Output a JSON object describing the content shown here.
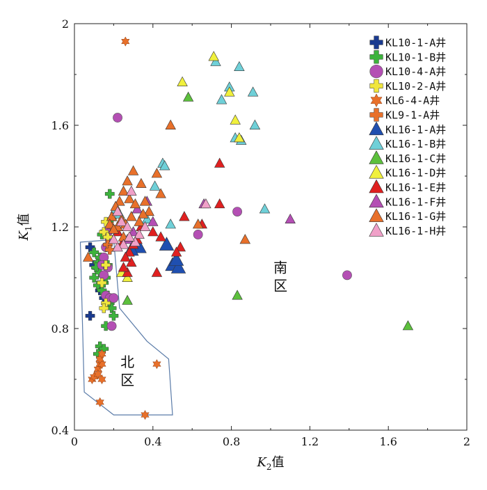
{
  "chart_data": {
    "type": "scatter",
    "title": "",
    "xlabel": "K₂值",
    "ylabel": "K₁值",
    "xlim": [
      0,
      2
    ],
    "ylim": [
      0.4,
      2
    ],
    "xticks": [
      "0",
      "0.4",
      "0.8",
      "1.2",
      "1.6",
      "2"
    ],
    "yticks": [
      "0.4",
      "0.8",
      "1.2",
      "1.6",
      "2"
    ],
    "xtick_values": [
      0,
      0.4,
      0.8,
      1.2,
      1.6,
      2
    ],
    "ytick_values": [
      0.4,
      0.8,
      1.2,
      1.6,
      2
    ],
    "grid": false,
    "legend_position": "top-right",
    "annotations": [
      {
        "text": "南\n区",
        "x": 1.05,
        "y": 1.02
      },
      {
        "text": "北\n区",
        "x": 0.27,
        "y": 0.65
      }
    ],
    "regions": [
      {
        "name": "北区",
        "boundary": [
          [
            0.03,
            1.14
          ],
          [
            0.2,
            1.15
          ],
          [
            0.23,
            0.88
          ],
          [
            0.37,
            0.75
          ],
          [
            0.48,
            0.68
          ],
          [
            0.5,
            0.46
          ],
          [
            0.2,
            0.46
          ],
          [
            0.05,
            0.55
          ]
        ],
        "color": "#5a7ba8"
      }
    ],
    "series": [
      {
        "name": "KL10-1-A井",
        "marker": "cross",
        "color": "#1a3a8f",
        "points": [
          [
            0.08,
            1.12
          ],
          [
            0.08,
            0.85
          ],
          [
            0.15,
            0.92
          ],
          [
            0.13,
            0.95
          ],
          [
            0.1,
            1.05
          ]
        ]
      },
      {
        "name": "KL10-1-B井",
        "marker": "cross",
        "color": "#3cb33c",
        "points": [
          [
            0.18,
            1.33
          ],
          [
            0.19,
            1.23
          ],
          [
            0.16,
            1.18
          ],
          [
            0.14,
            1.17
          ],
          [
            0.1,
            1.1
          ],
          [
            0.12,
            1.06
          ],
          [
            0.11,
            1.04
          ],
          [
            0.13,
            1.02
          ],
          [
            0.1,
            1.0
          ],
          [
            0.15,
            0.98
          ],
          [
            0.12,
            0.97
          ],
          [
            0.14,
            0.95
          ],
          [
            0.17,
            0.93
          ],
          [
            0.18,
            0.9
          ],
          [
            0.19,
            0.88
          ],
          [
            0.2,
            0.85
          ],
          [
            0.16,
            0.81
          ],
          [
            0.13,
            0.73
          ],
          [
            0.15,
            0.72
          ],
          [
            0.12,
            0.7
          ],
          [
            0.16,
            1.0
          ],
          [
            0.17,
            1.05
          ],
          [
            0.13,
            1.08
          ]
        ]
      },
      {
        "name": "KL10-4-A井",
        "marker": "circle",
        "color": "#b44fb4",
        "points": [
          [
            0.22,
            1.63
          ],
          [
            0.17,
            1.18
          ],
          [
            0.18,
            1.15
          ],
          [
            0.16,
            1.12
          ],
          [
            0.15,
            1.08
          ],
          [
            0.14,
            1.05
          ],
          [
            0.17,
            1.04
          ],
          [
            0.15,
            1.01
          ],
          [
            0.16,
            0.93
          ],
          [
            0.18,
            0.92
          ],
          [
            0.2,
            0.92
          ],
          [
            0.19,
            0.81
          ],
          [
            0.63,
            1.17
          ],
          [
            0.83,
            1.26
          ],
          [
            1.39,
            1.01
          ]
        ]
      },
      {
        "name": "KL10-2-A井",
        "marker": "cross",
        "color": "#f0e63c",
        "points": [
          [
            0.16,
            1.22
          ],
          [
            0.15,
            1.18
          ],
          [
            0.17,
            1.16
          ],
          [
            0.16,
            1.05
          ],
          [
            0.14,
            0.98
          ],
          [
            0.16,
            0.9
          ],
          [
            0.15,
            0.88
          ]
        ]
      },
      {
        "name": "KL6-4-A井",
        "marker": "star",
        "color": "#e8702a",
        "points": [
          [
            0.26,
            1.93
          ],
          [
            0.09,
            0.6
          ],
          [
            0.1,
            0.61
          ],
          [
            0.12,
            0.64
          ],
          [
            0.13,
            0.66
          ],
          [
            0.14,
            0.66
          ],
          [
            0.13,
            0.68
          ],
          [
            0.14,
            0.7
          ],
          [
            0.12,
            0.62
          ],
          [
            0.14,
            0.6
          ],
          [
            0.42,
            0.66
          ],
          [
            0.13,
            0.51
          ],
          [
            0.36,
            0.46
          ]
        ]
      },
      {
        "name": "KL9-1-A井",
        "marker": "cross",
        "color": "#e8702a",
        "points": [
          [
            0.19,
            1.2
          ],
          [
            0.17,
            1.13
          ],
          [
            0.18,
            1.11
          ]
        ]
      },
      {
        "name": "KL16-1-A井",
        "marker": "triangle",
        "color": "#1f4fb0",
        "points": [
          [
            0.31,
            1.13
          ],
          [
            0.33,
            1.12
          ],
          [
            0.47,
            1.13
          ],
          [
            0.5,
            1.05
          ],
          [
            0.53,
            1.04
          ],
          [
            0.52,
            1.07
          ],
          [
            0.29,
            1.11
          ]
        ]
      },
      {
        "name": "KL16-1-B井",
        "marker": "triangle",
        "color": "#6fd0d8",
        "points": [
          [
            0.72,
            1.85
          ],
          [
            0.84,
            1.83
          ],
          [
            0.79,
            1.75
          ],
          [
            0.91,
            1.73
          ],
          [
            0.75,
            1.7
          ],
          [
            0.82,
            1.55
          ],
          [
            0.92,
            1.6
          ],
          [
            0.85,
            1.54
          ],
          [
            0.45,
            1.45
          ],
          [
            0.46,
            1.44
          ],
          [
            0.41,
            1.36
          ],
          [
            0.97,
            1.27
          ],
          [
            0.21,
            1.27
          ],
          [
            0.23,
            1.25
          ],
          [
            0.49,
            1.21
          ],
          [
            0.37,
            1.23
          ]
        ]
      },
      {
        "name": "KL16-1-C井",
        "marker": "triangle",
        "color": "#5cc03c",
        "points": [
          [
            0.58,
            1.71
          ],
          [
            0.83,
            0.93
          ],
          [
            1.7,
            0.81
          ],
          [
            0.27,
            0.91
          ]
        ]
      },
      {
        "name": "KL16-1-D井",
        "marker": "triangle",
        "color": "#f0f03c",
        "points": [
          [
            0.71,
            1.87
          ],
          [
            0.55,
            1.77
          ],
          [
            0.79,
            1.73
          ],
          [
            0.82,
            1.62
          ],
          [
            0.84,
            1.55
          ],
          [
            0.27,
            1.0
          ],
          [
            0.24,
            1.02
          ]
        ]
      },
      {
        "name": "KL16-1-E井",
        "marker": "triangle",
        "color": "#e02020",
        "points": [
          [
            0.74,
            1.45
          ],
          [
            0.74,
            1.29
          ],
          [
            0.65,
            1.21
          ],
          [
            0.56,
            1.24
          ],
          [
            0.54,
            1.12
          ],
          [
            0.52,
            1.1
          ],
          [
            0.42,
            1.02
          ],
          [
            0.27,
            1.02
          ],
          [
            0.28,
            1.1
          ],
          [
            0.29,
            1.06
          ],
          [
            0.3,
            1.13
          ],
          [
            0.32,
            1.15
          ],
          [
            0.26,
            1.08
          ],
          [
            0.34,
            1.2
          ],
          [
            0.4,
            1.18
          ],
          [
            0.44,
            1.16
          ],
          [
            0.25,
            1.04
          ],
          [
            0.22,
            1.18
          ],
          [
            0.24,
            1.13
          ]
        ]
      },
      {
        "name": "KL16-1-F井",
        "marker": "triangle",
        "color": "#b44fb4",
        "points": [
          [
            1.1,
            1.23
          ],
          [
            0.66,
            1.29
          ],
          [
            0.4,
            1.22
          ],
          [
            0.32,
            1.27
          ],
          [
            0.37,
            1.3
          ],
          [
            0.3,
            1.18
          ],
          [
            0.27,
            1.15
          ]
        ]
      },
      {
        "name": "KL16-1-G井",
        "marker": "triangle",
        "color": "#e8702a",
        "points": [
          [
            0.49,
            1.6
          ],
          [
            0.3,
            1.42
          ],
          [
            0.27,
            1.38
          ],
          [
            0.34,
            1.37
          ],
          [
            0.42,
            1.41
          ],
          [
            0.44,
            1.33
          ],
          [
            0.36,
            1.3
          ],
          [
            0.38,
            1.26
          ],
          [
            0.35,
            1.25
          ],
          [
            0.25,
            1.34
          ],
          [
            0.23,
            1.3
          ],
          [
            0.28,
            1.31
          ],
          [
            0.31,
            1.29
          ],
          [
            0.21,
            1.28
          ],
          [
            0.19,
            1.24
          ],
          [
            0.18,
            1.21
          ],
          [
            0.24,
            1.23
          ],
          [
            0.22,
            1.2
          ],
          [
            0.2,
            1.19
          ],
          [
            0.26,
            1.21
          ],
          [
            0.63,
            1.21
          ],
          [
            0.87,
            1.15
          ],
          [
            0.29,
            1.24
          ],
          [
            0.33,
            1.22
          ],
          [
            0.07,
            1.08
          ],
          [
            0.25,
            1.16
          ]
        ]
      },
      {
        "name": "KL16-1-H井",
        "marker": "triangle",
        "color": "#f0a0c8",
        "points": [
          [
            0.67,
            1.29
          ],
          [
            0.29,
            1.34
          ],
          [
            0.22,
            1.26
          ],
          [
            0.24,
            1.22
          ],
          [
            0.27,
            1.2
          ],
          [
            0.33,
            1.17
          ],
          [
            0.36,
            1.2
          ],
          [
            0.31,
            1.14
          ],
          [
            0.28,
            1.16
          ],
          [
            0.25,
            1.13
          ],
          [
            0.22,
            1.12
          ],
          [
            0.2,
            1.15
          ]
        ]
      }
    ]
  }
}
